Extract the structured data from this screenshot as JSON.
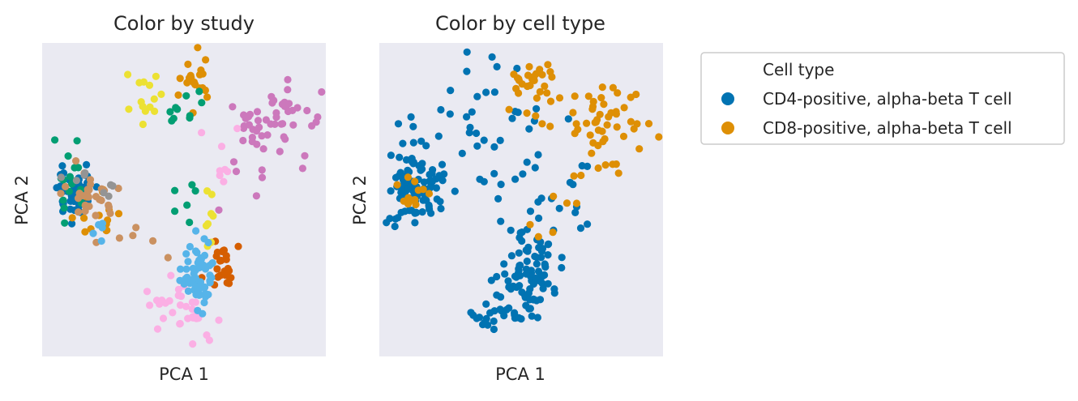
{
  "chart_data": [
    {
      "type": "scatter",
      "title": "Color by study",
      "xlabel": "PCA 1",
      "ylabel": "PCA 2",
      "xlim": [
        0,
        100
      ],
      "ylim": [
        0,
        100
      ],
      "grid": false,
      "color_by": "study",
      "clusters": [
        {
          "color": "#0173b2",
          "cx": 11,
          "cy": 51,
          "sx": 3.2,
          "sy": 4,
          "n": 55,
          "seed": 1
        },
        {
          "color": "#de8f05",
          "cx": 18,
          "cy": 44,
          "sx": 4,
          "sy": 5,
          "n": 14,
          "seed": 2
        },
        {
          "color": "#de8f05",
          "cx": 54,
          "cy": 89,
          "sx": 2.8,
          "sy": 6,
          "n": 20,
          "seed": 3
        },
        {
          "color": "#029e73",
          "cx": 9,
          "cy": 55,
          "sx": 3.5,
          "sy": 7,
          "n": 16,
          "seed": 4
        },
        {
          "color": "#029e73",
          "cx": 48,
          "cy": 80,
          "sx": 5,
          "sy": 3,
          "n": 10,
          "seed": 5
        },
        {
          "color": "#029e73",
          "cx": 50,
          "cy": 51,
          "sx": 5,
          "sy": 3,
          "n": 6,
          "seed": 6
        },
        {
          "color": "#d55e00",
          "cx": 63,
          "cy": 28,
          "sx": 3.5,
          "sy": 4.5,
          "n": 26,
          "seed": 7
        },
        {
          "color": "#cc78bc",
          "cx": 80,
          "cy": 76,
          "sx": 8,
          "sy": 7,
          "n": 52,
          "seed": 8
        },
        {
          "color": "#cc78bc",
          "cx": 70,
          "cy": 57,
          "sx": 4,
          "sy": 4,
          "n": 6,
          "seed": 9
        },
        {
          "color": "#ca9161",
          "cx": 17,
          "cy": 50,
          "sx": 5,
          "sy": 4.5,
          "n": 28,
          "seed": 10
        },
        {
          "color": "#ca9161",
          "cx": 31,
          "cy": 36,
          "sx": 5,
          "sy": 3,
          "n": 6,
          "seed": 11
        },
        {
          "color": "#fbafe4",
          "cx": 49,
          "cy": 15,
          "sx": 6,
          "sy": 5,
          "n": 34,
          "seed": 12
        },
        {
          "color": "#fbafe4",
          "cx": 62,
          "cy": 62,
          "sx": 3,
          "sy": 6,
          "n": 8,
          "seed": 13
        },
        {
          "color": "#949494",
          "cx": 20,
          "cy": 56,
          "sx": 4,
          "sy": 3,
          "n": 8,
          "seed": 14
        },
        {
          "color": "#ece133",
          "cx": 35,
          "cy": 83,
          "sx": 4.5,
          "sy": 5,
          "n": 14,
          "seed": 15
        },
        {
          "color": "#ece133",
          "cx": 60,
          "cy": 45,
          "sx": 3,
          "sy": 5,
          "n": 8,
          "seed": 16
        },
        {
          "color": "#56b4e9",
          "cx": 55,
          "cy": 26,
          "sx": 2.6,
          "sy": 5,
          "n": 58,
          "seed": 17
        },
        {
          "color": "#56b4e9",
          "cx": 21,
          "cy": 38,
          "sx": 3,
          "sy": 3,
          "n": 5,
          "seed": 18
        }
      ]
    },
    {
      "type": "scatter",
      "title": "Color by cell type",
      "xlabel": "PCA 1",
      "ylabel": "PCA 2",
      "xlim": [
        0,
        100
      ],
      "ylim": [
        0,
        100
      ],
      "grid": false,
      "color_by": "cell type",
      "legend": {
        "title": "Cell type",
        "placement": "outside-right",
        "entries": [
          {
            "label": "CD4-positive, alpha-beta T cell",
            "color": "#0173b2"
          },
          {
            "label": "CD8-positive, alpha-beta T cell",
            "color": "#de8f05"
          }
        ]
      },
      "clusters": [
        {
          "color": "#0173b2",
          "cx": 13,
          "cy": 54,
          "sx": 5,
          "sy": 5.5,
          "n": 95,
          "seed": 21
        },
        {
          "color": "#0173b2",
          "cx": 53,
          "cy": 26,
          "sx": 5,
          "sy": 6,
          "n": 80,
          "seed": 22
        },
        {
          "color": "#0173b2",
          "cx": 42,
          "cy": 14,
          "sx": 4,
          "sy": 4,
          "n": 22,
          "seed": 23
        },
        {
          "color": "#0173b2",
          "cx": 38,
          "cy": 72,
          "sx": 15,
          "sy": 12,
          "n": 45,
          "seed": 24
        },
        {
          "color": "#0173b2",
          "cx": 60,
          "cy": 48,
          "sx": 8,
          "sy": 10,
          "n": 22,
          "seed": 25
        },
        {
          "color": "#de8f05",
          "cx": 55,
          "cy": 87,
          "sx": 4,
          "sy": 6,
          "n": 30,
          "seed": 26
        },
        {
          "color": "#de8f05",
          "cx": 81,
          "cy": 75,
          "sx": 7,
          "sy": 7,
          "n": 50,
          "seed": 27
        },
        {
          "color": "#de8f05",
          "cx": 13,
          "cy": 53,
          "sx": 3,
          "sy": 3.5,
          "n": 12,
          "seed": 28
        },
        {
          "color": "#de8f05",
          "cx": 62,
          "cy": 47,
          "sx": 4,
          "sy": 5,
          "n": 7,
          "seed": 29
        }
      ]
    }
  ]
}
